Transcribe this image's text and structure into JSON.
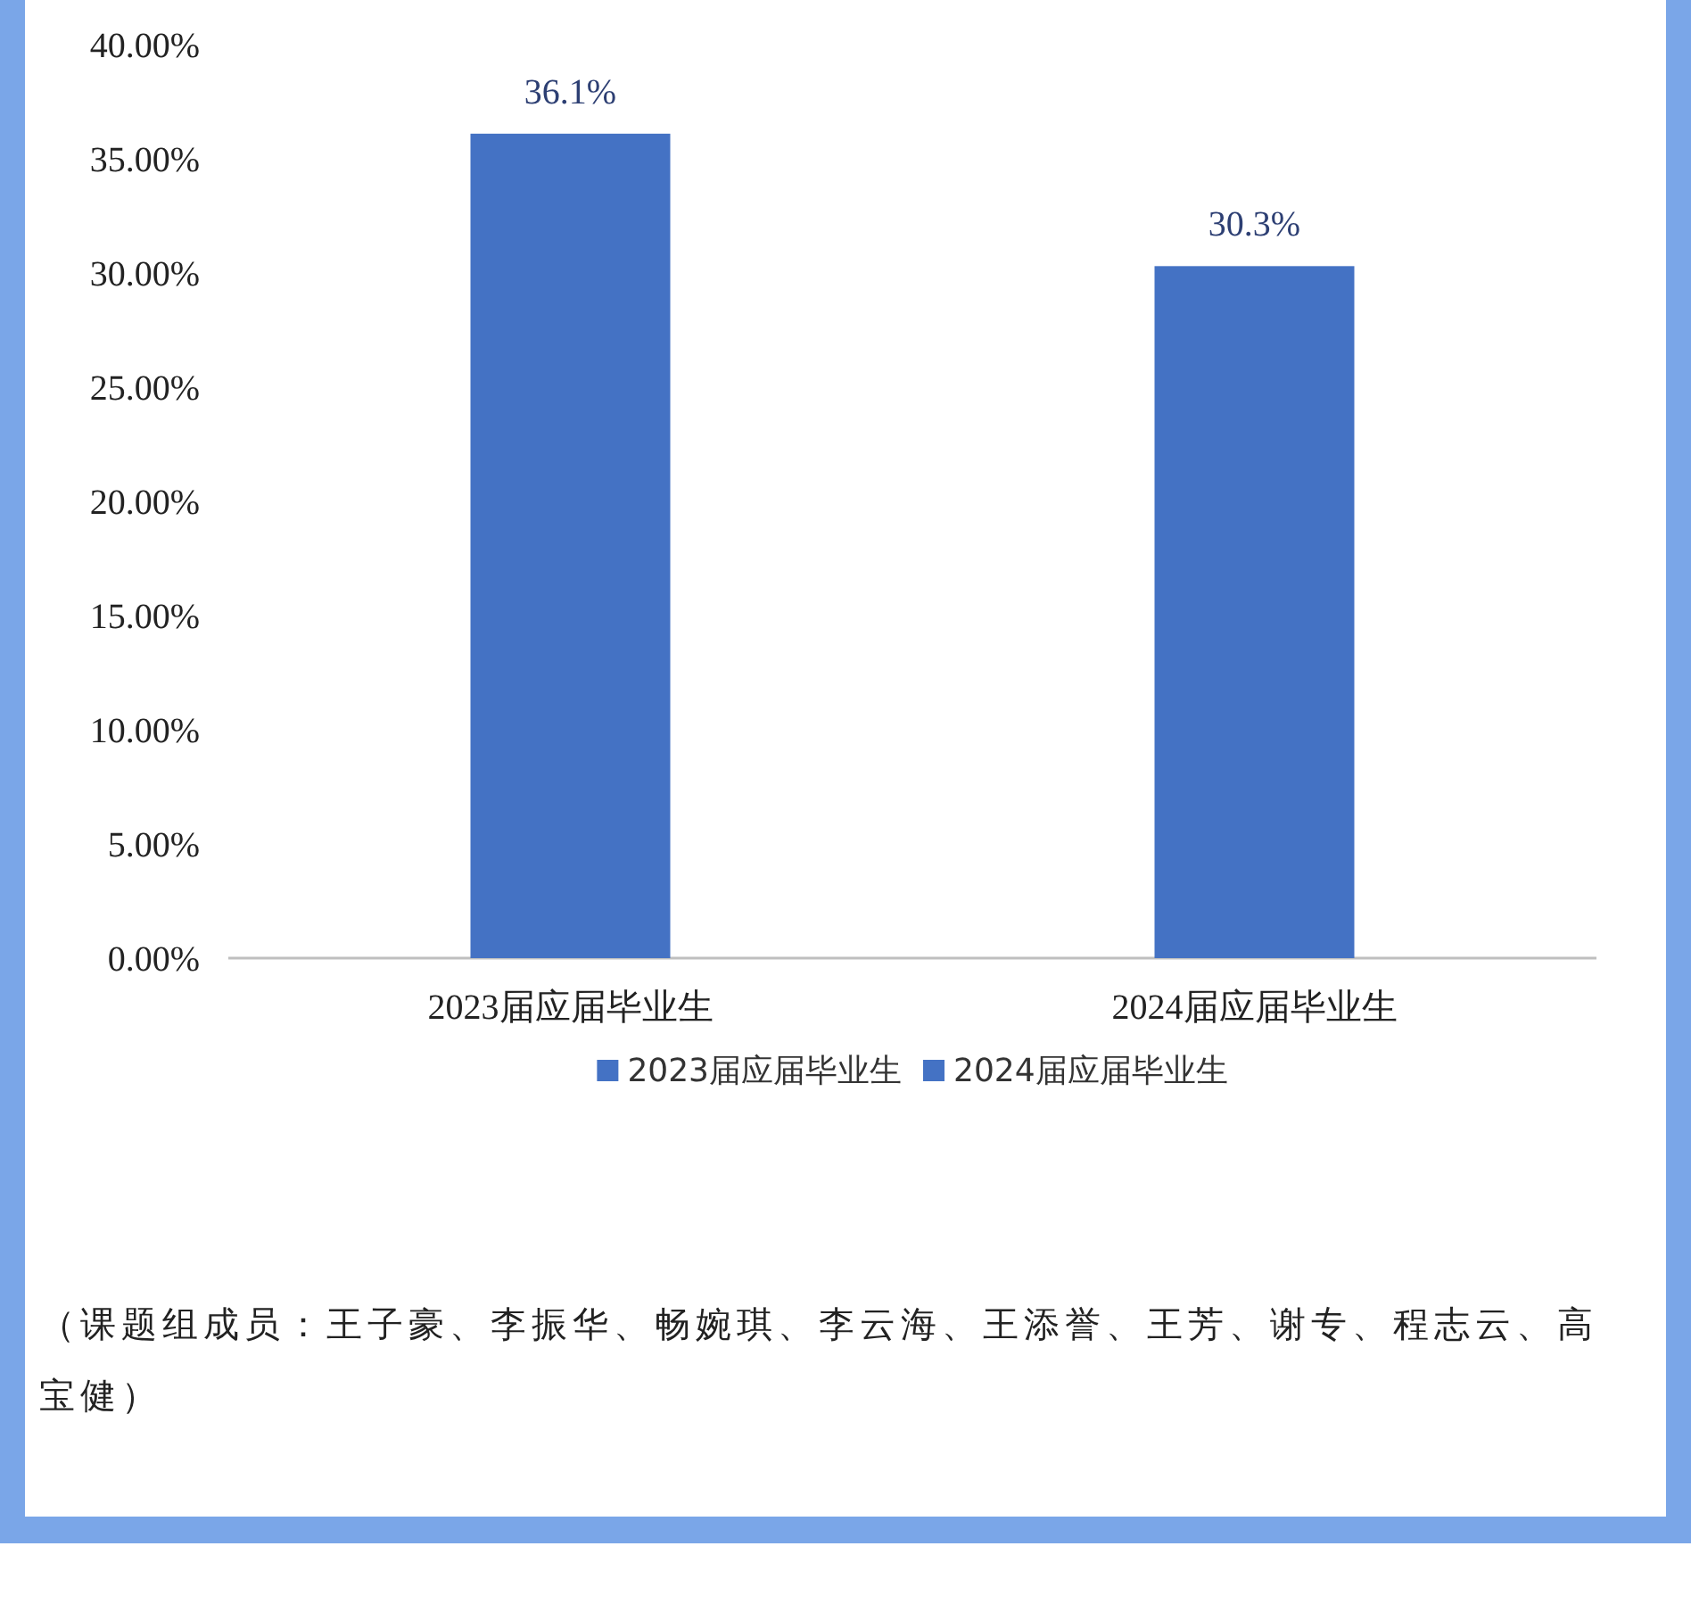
{
  "chart_data": {
    "type": "bar",
    "categories": [
      "2023届应届毕业生",
      "2024届应届毕业生"
    ],
    "series": [
      {
        "name": "2023届应届毕业生",
        "color": "#4472c4",
        "values": [
          36.1,
          null
        ],
        "value_labels": [
          "36.1%",
          null
        ]
      },
      {
        "name": "2024届应届毕业生",
        "color": "#4472c4",
        "values": [
          null,
          30.3
        ],
        "value_labels": [
          null,
          "30.3%"
        ]
      }
    ],
    "ylim": [
      0,
      40
    ],
    "yticks": [
      {
        "value": 0,
        "label": "0.00%"
      },
      {
        "value": 5,
        "label": "5.00%"
      },
      {
        "value": 10,
        "label": "10.00%"
      },
      {
        "value": 15,
        "label": "15.00%"
      },
      {
        "value": 20,
        "label": "20.00%"
      },
      {
        "value": 25,
        "label": "25.00%"
      },
      {
        "value": 30,
        "label": "30.00%"
      },
      {
        "value": 35,
        "label": "35.00%"
      },
      {
        "value": 40,
        "label": "40.00%"
      }
    ],
    "legend": "bottom",
    "annotations": [
      "（课题组成员：王子豪、李振华、畅婉琪、李云海、王添誉、王芳、谢专、程志云、高宝健）"
    ]
  }
}
